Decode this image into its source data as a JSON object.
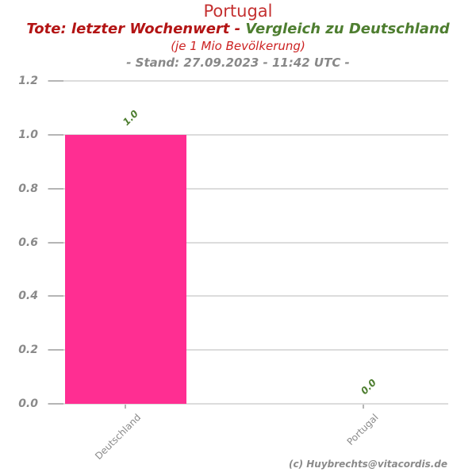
{
  "header": {
    "title": "Portugal",
    "subtitle_left": "Tote: letzter Wochenwert - ",
    "subtitle_right": "Vergleich zu Deutschland",
    "unit_note": "(je 1 Mio Bevölkerung)",
    "stand_note": "- Stand: 27.09.2023 - 11:42 UTC -"
  },
  "chart_data": {
    "type": "bar",
    "title": "Portugal",
    "subtitle": "Tote: letzter Wochenwert - Vergleich zu Deutschland (je 1 Mio Bevölkerung)",
    "categories": [
      "Deutschland",
      "Portugal"
    ],
    "values": [
      1.0,
      0.0
    ],
    "value_labels": [
      "1.0",
      "0.0"
    ],
    "xlabel": "",
    "ylabel": "",
    "ylim": [
      0.0,
      1.2
    ],
    "yticks": [
      0.0,
      0.2,
      0.4,
      0.6,
      0.8,
      1.0,
      1.2
    ],
    "ytick_labels": [
      "0.0",
      "0.2",
      "0.4",
      "0.6",
      "0.8",
      "1.0",
      "1.2"
    ],
    "grid": true,
    "legend_position": "none",
    "bar_color": "#ff2e92",
    "value_label_color": "#4e7e30"
  },
  "footer": {
    "credit": "(c) Huybrechts@vitacordis.de"
  },
  "colors": {
    "title_red": "#c43030",
    "subtitle_red": "#b31414",
    "subtitle_green": "#4e7e30",
    "unit_red": "#cc2222",
    "muted_gray": "#888888",
    "grid_gray": "#dcdcdc",
    "bar_pink": "#ff2e92"
  }
}
